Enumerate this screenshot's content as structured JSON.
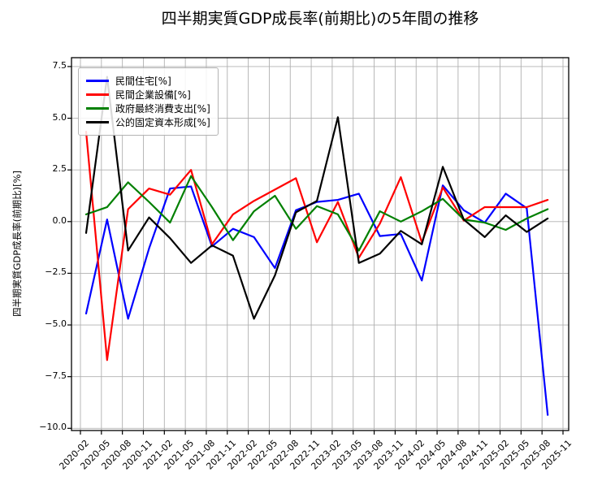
{
  "chart_data": {
    "type": "line",
    "title": "四半期実質GDP成長率(前期比)の5年間の推移",
    "ylabel": "四半期実質GDP成長率(前期比)[%]",
    "xlabel": "",
    "grid": true,
    "legend_position": "upper-left",
    "ylim": [
      -10.1,
      7.9
    ],
    "y_ticks": [
      7.5,
      5.0,
      2.5,
      0.0,
      -2.5,
      -5.0,
      -7.5,
      -10.0
    ],
    "y_tick_labels": [
      "7.5",
      "5.0",
      "2.5",
      "0.0",
      "−2.5",
      "−5.0",
      "−7.5",
      "−10.0"
    ],
    "x_tick_labels": [
      "2020-02",
      "2020-05",
      "2020-08",
      "2020-11",
      "2021-02",
      "2021-05",
      "2021-08",
      "2021-11",
      "2022-02",
      "2022-05",
      "2022-08",
      "2022-11",
      "2023-02",
      "2023-05",
      "2023-08",
      "2023-11",
      "2024-02",
      "2024-05",
      "2024-08",
      "2024-11",
      "2025-02",
      "2025-05",
      "2025-08",
      "2025-11"
    ],
    "categories": [
      "2020-02",
      "2020-05",
      "2020-08",
      "2020-11",
      "2021-02",
      "2021-05",
      "2021-08",
      "2021-11",
      "2022-02",
      "2022-05",
      "2022-08",
      "2022-11",
      "2023-02",
      "2023-05",
      "2023-08",
      "2023-11",
      "2024-02",
      "2024-05",
      "2024-08",
      "2024-11",
      "2025-02",
      "2025-05",
      "2025-08"
    ],
    "series": [
      {
        "id": "private-housing",
        "name": "民間住宅[%]",
        "color": "#0000ff",
        "values": [
          -4.45,
          0.1,
          -4.7,
          -1.3,
          1.6,
          1.7,
          -1.2,
          -0.35,
          -0.75,
          -2.25,
          0.55,
          0.95,
          1.05,
          1.35,
          -0.7,
          -0.6,
          -2.85,
          1.75,
          0.55,
          -0.05,
          1.35,
          0.65,
          -9.35
        ]
      },
      {
        "id": "private-capex",
        "name": "民間企業設備[%]",
        "color": "#ff0000",
        "values": [
          4.35,
          -6.7,
          0.6,
          1.6,
          1.3,
          2.5,
          -1.1,
          0.35,
          1.0,
          1.55,
          2.1,
          -1.0,
          0.95,
          -1.75,
          -0.1,
          2.15,
          -1.0,
          1.65,
          0.05,
          0.7,
          0.7,
          0.7,
          1.05
        ]
      },
      {
        "id": "govt-final-consumption",
        "name": "政府最終消費支出[%]",
        "color": "#008000",
        "values": [
          0.35,
          0.7,
          1.9,
          0.95,
          -0.05,
          2.2,
          0.7,
          -0.9,
          0.5,
          1.25,
          -0.35,
          0.75,
          0.35,
          -1.4,
          0.5,
          0.0,
          0.5,
          1.1,
          0.1,
          -0.05,
          -0.4,
          0.15,
          0.6
        ]
      },
      {
        "id": "public-fixed-capital",
        "name": "公的固定資本形成[%]",
        "color": "#000000",
        "values": [
          -0.55,
          7.0,
          -1.4,
          0.2,
          -0.8,
          -2.0,
          -1.15,
          -1.65,
          -4.7,
          -2.6,
          0.45,
          1.0,
          5.05,
          -2.0,
          -1.55,
          -0.45,
          -1.1,
          2.65,
          0.1,
          -0.75,
          0.3,
          -0.5,
          0.15
        ]
      }
    ]
  }
}
